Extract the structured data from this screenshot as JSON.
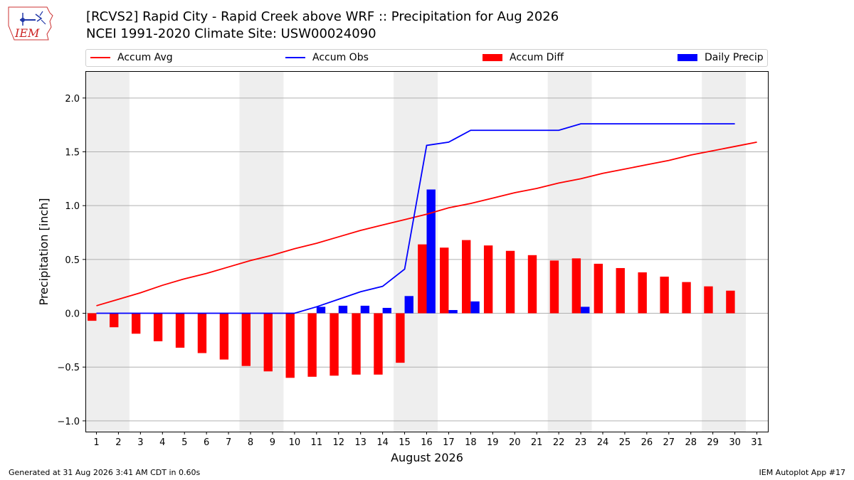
{
  "header": {
    "logo_text": "IEM",
    "title": "[RCVS2] Rapid City - Rapid Creek above WRF :: Precipitation for Aug 2026",
    "subtitle": "NCEI 1991-2020 Climate Site: USW00024090"
  },
  "footer": {
    "generated": "Generated at 31 Aug 2026 3:41 AM CDT in 0.60s",
    "app": "IEM Autoplot App #17"
  },
  "colors": {
    "avg": "#ff0000",
    "obs": "#0000ff",
    "diff": "#ff0000",
    "daily": "#0000ff",
    "weekend": "#eeeeee"
  },
  "chart_data": {
    "type": "bar",
    "xlabel": "August 2026",
    "ylabel": "Precipitation [inch]",
    "xlim": [
      0.5,
      31.5
    ],
    "ylim": [
      -1.1,
      2.25
    ],
    "yticks": [
      -1.0,
      -0.5,
      0.0,
      0.5,
      1.0,
      1.5,
      2.0
    ],
    "ytick_labels": [
      "−1.0",
      "−0.5",
      "0.0",
      "0.5",
      "1.0",
      "1.5",
      "2.0"
    ],
    "days": [
      1,
      2,
      3,
      4,
      5,
      6,
      7,
      8,
      9,
      10,
      11,
      12,
      13,
      14,
      15,
      16,
      17,
      18,
      19,
      20,
      21,
      22,
      23,
      24,
      25,
      26,
      27,
      28,
      29,
      30,
      31
    ],
    "weekend_ranges": [
      [
        0.5,
        2.5
      ],
      [
        7.5,
        9.5
      ],
      [
        14.5,
        16.5
      ],
      [
        21.5,
        23.5
      ],
      [
        28.5,
        30.5
      ]
    ],
    "grid": true,
    "legend_placement": "top",
    "series": [
      {
        "name": "Accum Avg",
        "kind": "line",
        "x": [
          1,
          2,
          3,
          4,
          5,
          6,
          7,
          8,
          9,
          10,
          11,
          12,
          13,
          14,
          15,
          16,
          17,
          18,
          19,
          20,
          21,
          22,
          23,
          24,
          25,
          26,
          27,
          28,
          29,
          30,
          31
        ],
        "values": [
          0.07,
          0.13,
          0.19,
          0.26,
          0.32,
          0.37,
          0.43,
          0.49,
          0.54,
          0.6,
          0.65,
          0.71,
          0.77,
          0.82,
          0.87,
          0.92,
          0.98,
          1.02,
          1.07,
          1.12,
          1.16,
          1.21,
          1.25,
          1.3,
          1.34,
          1.38,
          1.42,
          1.47,
          1.51,
          1.55,
          1.59
        ]
      },
      {
        "name": "Accum Obs",
        "kind": "line",
        "x": [
          1,
          2,
          3,
          4,
          5,
          6,
          7,
          8,
          9,
          10,
          11,
          12,
          13,
          14,
          15,
          16,
          17,
          18,
          19,
          20,
          21,
          22,
          23,
          24,
          25,
          26,
          27,
          28,
          29,
          30
        ],
        "values": [
          0,
          0,
          0,
          0,
          0,
          0,
          0,
          0,
          0,
          0,
          0.06,
          0.13,
          0.2,
          0.25,
          0.41,
          1.56,
          1.59,
          1.7,
          1.7,
          1.7,
          1.7,
          1.7,
          1.76,
          1.76,
          1.76,
          1.76,
          1.76,
          1.76,
          1.76,
          1.76
        ]
      },
      {
        "name": "Accum Diff",
        "kind": "bar",
        "x": [
          1,
          2,
          3,
          4,
          5,
          6,
          7,
          8,
          9,
          10,
          11,
          12,
          13,
          14,
          15,
          16,
          17,
          18,
          19,
          20,
          21,
          22,
          23,
          24,
          25,
          26,
          27,
          28,
          29,
          30
        ],
        "values": [
          -0.07,
          -0.13,
          -0.19,
          -0.26,
          -0.32,
          -0.37,
          -0.43,
          -0.49,
          -0.54,
          -0.6,
          -0.59,
          -0.58,
          -0.57,
          -0.57,
          -0.46,
          0.64,
          0.61,
          0.68,
          0.63,
          0.58,
          0.54,
          0.49,
          0.51,
          0.46,
          0.42,
          0.38,
          0.34,
          0.29,
          0.25,
          0.21
        ]
      },
      {
        "name": "Daily Precip",
        "kind": "bar",
        "x": [
          1,
          2,
          3,
          4,
          5,
          6,
          7,
          8,
          9,
          10,
          11,
          12,
          13,
          14,
          15,
          16,
          17,
          18,
          19,
          20,
          21,
          22,
          23,
          24,
          25,
          26,
          27,
          28,
          29,
          30
        ],
        "values": [
          0,
          0,
          0,
          0,
          0,
          0,
          0,
          0,
          0,
          0,
          0.06,
          0.07,
          0.07,
          0.05,
          0.16,
          1.15,
          0.03,
          0.11,
          0,
          0,
          0,
          0,
          0.06,
          0,
          0,
          0,
          0,
          0,
          0,
          0
        ]
      }
    ]
  }
}
